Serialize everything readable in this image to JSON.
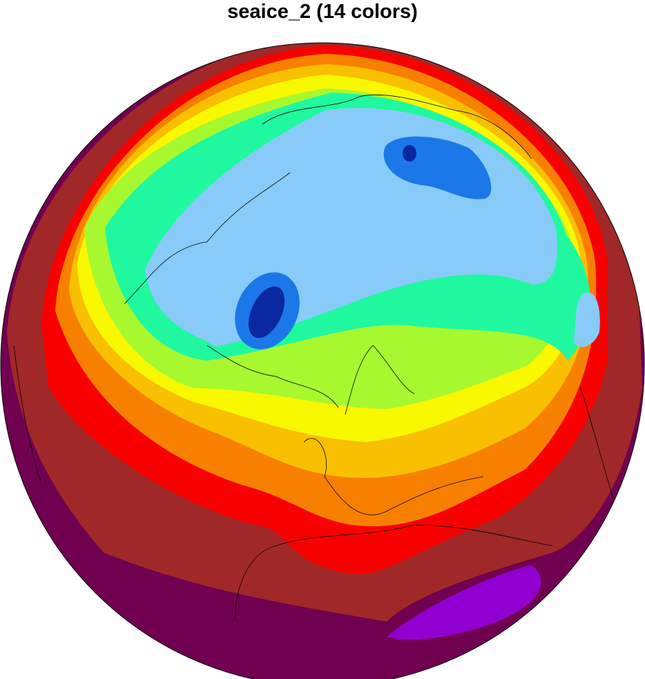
{
  "title": "seaice_2 (14 colors)",
  "map": {
    "projection": "orthographic",
    "coastlines": true,
    "colors": {
      "level1": "#0a28a0",
      "level2": "#1c78e8",
      "level3": "#88cbf8",
      "level4": "#20f8a0",
      "level5": "#a8f830",
      "level6": "#f8f800",
      "level7": "#f8c000",
      "level8": "#f88000",
      "level9": "#f80000",
      "level10": "#a02828",
      "level11": "#700050",
      "level12": "#9000d0"
    }
  }
}
